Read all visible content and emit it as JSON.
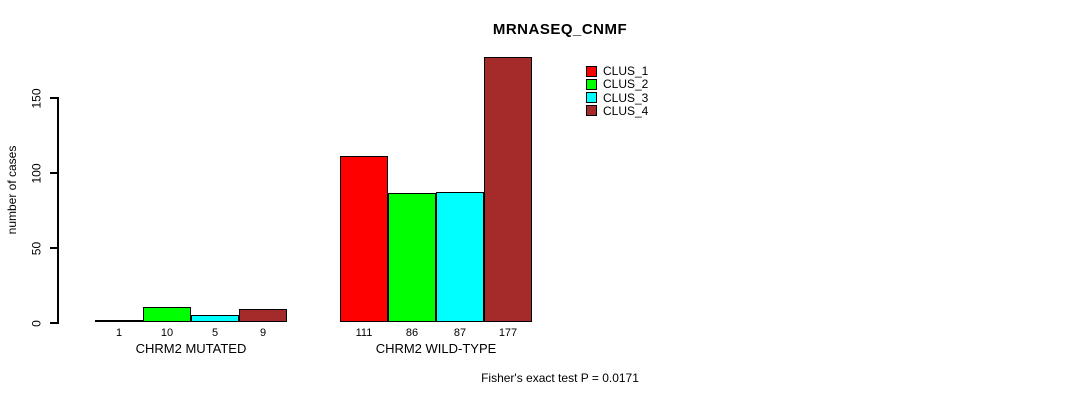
{
  "chart_data": {
    "type": "bar",
    "title": "MRNASEQ_CNMF",
    "xlabel": "",
    "ylabel": "number of cases",
    "categories": [
      "CHRM2 MUTATED",
      "CHRM2 WILD-TYPE"
    ],
    "series": [
      {
        "name": "CLUS_1",
        "color": "#FF0000",
        "values": [
          1,
          111
        ]
      },
      {
        "name": "CLUS_2",
        "color": "#00FF00",
        "values": [
          10,
          86
        ]
      },
      {
        "name": "CLUS_3",
        "color": "#00FFFF",
        "values": [
          5,
          87
        ]
      },
      {
        "name": "CLUS_4",
        "color": "#A52A2A",
        "values": [
          9,
          177
        ]
      }
    ],
    "bar_value_labels": [
      [
        "1",
        "10",
        "5",
        "9"
      ],
      [
        "111",
        "86",
        "87",
        "177"
      ]
    ],
    "yticks": [
      0,
      50,
      100,
      150
    ],
    "ylim": [
      0,
      180
    ],
    "grid": false,
    "legend_position": "top-right",
    "annotation": "Fisher's exact test P = 0.0171"
  }
}
